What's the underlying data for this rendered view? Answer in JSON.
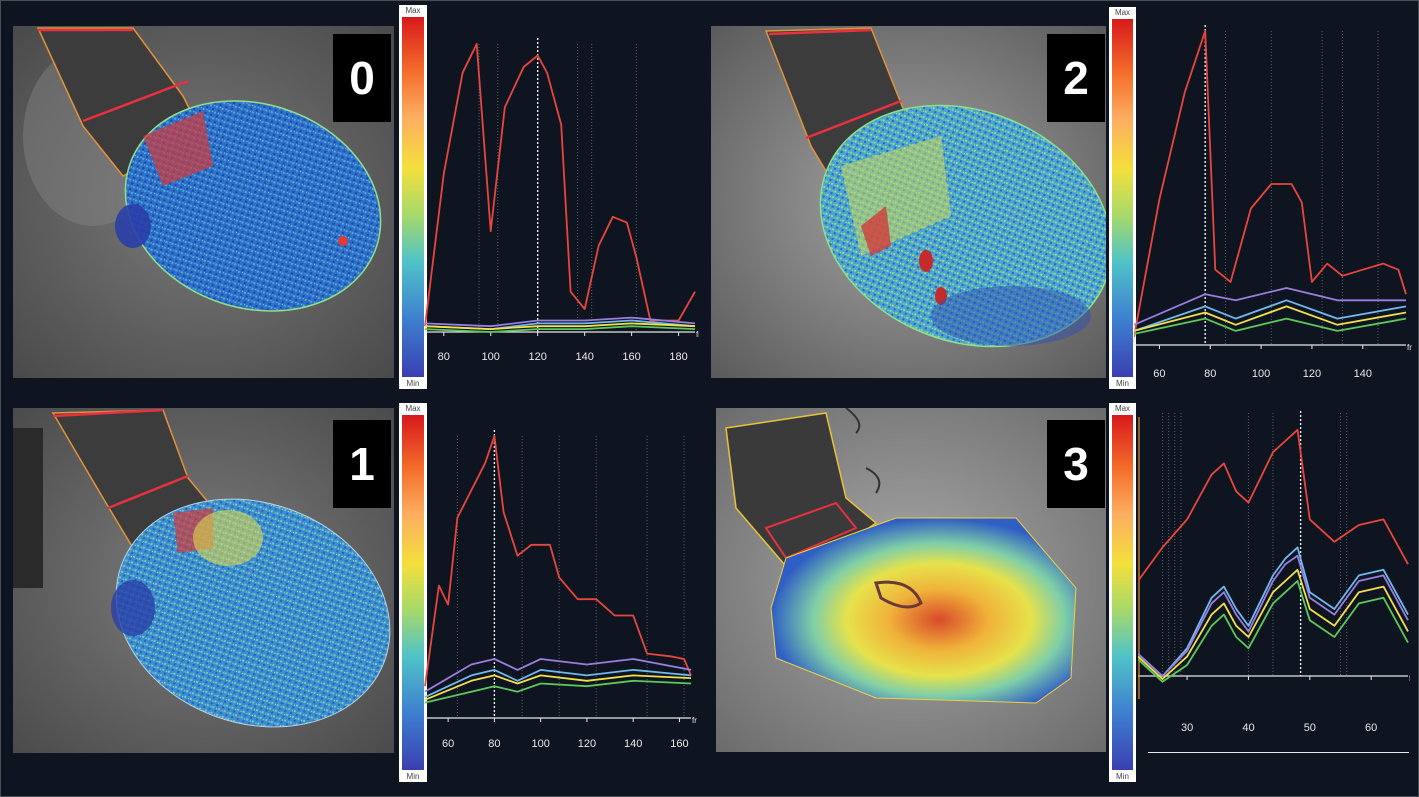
{
  "colorbar": {
    "max": "Max",
    "min": "Min"
  },
  "axis_unit": "fr",
  "panels": [
    {
      "id": "0",
      "label": "0",
      "ticks": [
        "80",
        "100",
        "120",
        "140",
        "160",
        "180"
      ]
    },
    {
      "id": "1",
      "label": "1",
      "ticks": [
        "60",
        "80",
        "100",
        "120",
        "140",
        "160"
      ]
    },
    {
      "id": "2",
      "label": "2",
      "ticks": [
        "60",
        "80",
        "100",
        "120",
        "140"
      ]
    },
    {
      "id": "3",
      "label": "3",
      "ticks": [
        "30",
        "40",
        "50",
        "60"
      ]
    }
  ],
  "chart_data": [
    {
      "type": "line",
      "panel": "0",
      "x_range": [
        72,
        187
      ],
      "series": [
        {
          "color": "#e8463c",
          "points": [
            [
              72,
              2
            ],
            [
              80,
              55
            ],
            [
              88,
              90
            ],
            [
              94,
              100
            ],
            [
              100,
              35
            ],
            [
              106,
              78
            ],
            [
              114,
              92
            ],
            [
              120,
              96
            ],
            [
              124,
              90
            ],
            [
              130,
              72
            ],
            [
              134,
              14
            ],
            [
              140,
              8
            ],
            [
              146,
              30
            ],
            [
              152,
              40
            ],
            [
              158,
              38
            ],
            [
              162,
              26
            ],
            [
              168,
              4
            ],
            [
              180,
              4
            ],
            [
              187,
              14
            ]
          ]
        },
        {
          "color": "#9a7de0",
          "points": [
            [
              72,
              3
            ],
            [
              100,
              2
            ],
            [
              120,
              4
            ],
            [
              140,
              4
            ],
            [
              160,
              5
            ],
            [
              187,
              3
            ]
          ]
        },
        {
          "color": "#6fb9ef",
          "points": [
            [
              72,
              2
            ],
            [
              100,
              1
            ],
            [
              120,
              3
            ],
            [
              140,
              3
            ],
            [
              160,
              4
            ],
            [
              187,
              2
            ]
          ]
        },
        {
          "color": "#f1e04a",
          "points": [
            [
              72,
              2
            ],
            [
              100,
              1
            ],
            [
              120,
              2
            ],
            [
              140,
              2
            ],
            [
              160,
              3
            ],
            [
              187,
              2
            ]
          ]
        },
        {
          "color": "#5cc85a",
          "points": [
            [
              72,
              1
            ],
            [
              100,
              0
            ],
            [
              120,
              1
            ],
            [
              140,
              1
            ],
            [
              160,
              2
            ],
            [
              187,
              1
            ]
          ]
        }
      ]
    },
    {
      "type": "line",
      "panel": "1",
      "x_range": [
        50,
        165
      ],
      "series": [
        {
          "color": "#e8463c",
          "points": [
            [
              50,
              8
            ],
            [
              56,
              45
            ],
            [
              60,
              38
            ],
            [
              64,
              70
            ],
            [
              70,
              80
            ],
            [
              76,
              90
            ],
            [
              80,
              100
            ],
            [
              84,
              72
            ],
            [
              90,
              56
            ],
            [
              96,
              60
            ],
            [
              104,
              60
            ],
            [
              108,
              48
            ],
            [
              116,
              40
            ],
            [
              124,
              40
            ],
            [
              132,
              34
            ],
            [
              140,
              34
            ],
            [
              146,
              20
            ],
            [
              156,
              19
            ],
            [
              162,
              18
            ],
            [
              165,
              12
            ]
          ]
        },
        {
          "color": "#9a7de0",
          "points": [
            [
              50,
              6
            ],
            [
              70,
              16
            ],
            [
              80,
              18
            ],
            [
              90,
              14
            ],
            [
              100,
              18
            ],
            [
              120,
              16
            ],
            [
              140,
              18
            ],
            [
              165,
              14
            ]
          ]
        },
        {
          "color": "#6fb9ef",
          "points": [
            [
              50,
              4
            ],
            [
              70,
              12
            ],
            [
              80,
              14
            ],
            [
              90,
              10
            ],
            [
              100,
              14
            ],
            [
              120,
              12
            ],
            [
              140,
              14
            ],
            [
              165,
              12
            ]
          ]
        },
        {
          "color": "#f1e04a",
          "points": [
            [
              50,
              3
            ],
            [
              70,
              10
            ],
            [
              80,
              12
            ],
            [
              90,
              9
            ],
            [
              100,
              12
            ],
            [
              120,
              10
            ],
            [
              140,
              12
            ],
            [
              165,
              11
            ]
          ]
        },
        {
          "color": "#5cc85a",
          "points": [
            [
              50,
              2
            ],
            [
              70,
              6
            ],
            [
              80,
              8
            ],
            [
              90,
              6
            ],
            [
              100,
              9
            ],
            [
              120,
              8
            ],
            [
              140,
              10
            ],
            [
              165,
              9
            ]
          ]
        }
      ]
    },
    {
      "type": "line",
      "panel": "2",
      "x_range": [
        50,
        157
      ],
      "series": [
        {
          "color": "#e8463c",
          "points": [
            [
              50,
              0
            ],
            [
              60,
              45
            ],
            [
              70,
              80
            ],
            [
              78,
              100
            ],
            [
              82,
              22
            ],
            [
              88,
              18
            ],
            [
              96,
              42
            ],
            [
              104,
              50
            ],
            [
              112,
              50
            ],
            [
              116,
              44
            ],
            [
              120,
              18
            ],
            [
              126,
              24
            ],
            [
              132,
              20
            ],
            [
              140,
              22
            ],
            [
              148,
              24
            ],
            [
              154,
              22
            ],
            [
              157,
              14
            ]
          ]
        },
        {
          "color": "#9a7de0",
          "points": [
            [
              50,
              4
            ],
            [
              78,
              14
            ],
            [
              90,
              12
            ],
            [
              110,
              16
            ],
            [
              130,
              12
            ],
            [
              157,
              12
            ]
          ]
        },
        {
          "color": "#6fb9ef",
          "points": [
            [
              50,
              2
            ],
            [
              78,
              10
            ],
            [
              90,
              6
            ],
            [
              110,
              12
            ],
            [
              130,
              6
            ],
            [
              157,
              10
            ]
          ]
        },
        {
          "color": "#f1e04a",
          "points": [
            [
              50,
              2
            ],
            [
              78,
              8
            ],
            [
              90,
              4
            ],
            [
              110,
              10
            ],
            [
              130,
              4
            ],
            [
              157,
              8
            ]
          ]
        },
        {
          "color": "#5cc85a",
          "points": [
            [
              50,
              1
            ],
            [
              78,
              6
            ],
            [
              90,
              2
            ],
            [
              110,
              6
            ],
            [
              130,
              2
            ],
            [
              157,
              6
            ]
          ]
        }
      ]
    },
    {
      "type": "line",
      "panel": "3",
      "x_range": [
        22,
        66
      ],
      "series": [
        {
          "color": "#e8463c",
          "points": [
            [
              22,
              40
            ],
            [
              26,
              52
            ],
            [
              30,
              62
            ],
            [
              34,
              78
            ],
            [
              36,
              82
            ],
            [
              38,
              72
            ],
            [
              40,
              68
            ],
            [
              44,
              86
            ],
            [
              46,
              90
            ],
            [
              48,
              94
            ],
            [
              50,
              62
            ],
            [
              54,
              54
            ],
            [
              58,
              60
            ],
            [
              62,
              62
            ],
            [
              66,
              46
            ]
          ]
        },
        {
          "color": "#6fb9ef",
          "points": [
            [
              22,
              14
            ],
            [
              26,
              6
            ],
            [
              30,
              16
            ],
            [
              34,
              34
            ],
            [
              36,
              38
            ],
            [
              38,
              30
            ],
            [
              40,
              24
            ],
            [
              44,
              42
            ],
            [
              46,
              48
            ],
            [
              48,
              52
            ],
            [
              50,
              36
            ],
            [
              54,
              30
            ],
            [
              58,
              42
            ],
            [
              62,
              44
            ],
            [
              66,
              28
            ]
          ]
        },
        {
          "color": "#9a7de0",
          "points": [
            [
              22,
              14
            ],
            [
              26,
              6
            ],
            [
              30,
              15
            ],
            [
              34,
              32
            ],
            [
              36,
              36
            ],
            [
              38,
              28
            ],
            [
              40,
              22
            ],
            [
              44,
              40
            ],
            [
              46,
              46
            ],
            [
              48,
              49
            ],
            [
              50,
              34
            ],
            [
              54,
              28
            ],
            [
              58,
              40
            ],
            [
              62,
              42
            ],
            [
              66,
              26
            ]
          ]
        },
        {
          "color": "#f1e04a",
          "points": [
            [
              22,
              13
            ],
            [
              26,
              5
            ],
            [
              30,
              13
            ],
            [
              34,
              28
            ],
            [
              36,
              32
            ],
            [
              38,
              24
            ],
            [
              40,
              20
            ],
            [
              44,
              36
            ],
            [
              46,
              40
            ],
            [
              48,
              44
            ],
            [
              50,
              30
            ],
            [
              54,
              24
            ],
            [
              58,
              36
            ],
            [
              62,
              38
            ],
            [
              66,
              22
            ]
          ]
        },
        {
          "color": "#5cc85a",
          "points": [
            [
              22,
              12
            ],
            [
              26,
              4
            ],
            [
              30,
              10
            ],
            [
              34,
              24
            ],
            [
              36,
              28
            ],
            [
              38,
              20
            ],
            [
              40,
              16
            ],
            [
              44,
              32
            ],
            [
              46,
              36
            ],
            [
              48,
              40
            ],
            [
              50,
              26
            ],
            [
              54,
              20
            ],
            [
              58,
              32
            ],
            [
              62,
              34
            ],
            [
              66,
              18
            ]
          ]
        }
      ]
    }
  ]
}
